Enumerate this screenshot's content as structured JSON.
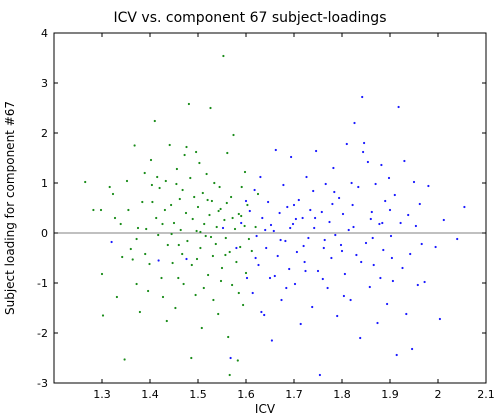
{
  "chart_data": {
    "type": "scatter",
    "title": "ICV vs. component 67 subject-loadings",
    "xlabel": "ICV",
    "ylabel": "Subject loading for component #67",
    "xlim": [
      1.2,
      2.1
    ],
    "ylim": [
      -3,
      4
    ],
    "xticks": [
      "1.3",
      "1.4",
      "1.5",
      "1.6",
      "1.7",
      "1.8",
      "1.9",
      "2",
      "2.1"
    ],
    "yticks": [
      "-3",
      "-2",
      "-1",
      "0",
      "1",
      "2",
      "3",
      "4"
    ],
    "grid": false,
    "reference_line_y": 0,
    "colors": {
      "green": "#1a8c1a",
      "blue": "#1a1aff",
      "axis": "#000000",
      "zero_line": "#808080"
    },
    "series": [
      {
        "color": "green",
        "points": [
          [
            1.265,
            1.02
          ],
          [
            1.282,
            0.46
          ],
          [
            1.298,
            0.46
          ],
          [
            1.3,
            -0.82
          ],
          [
            1.302,
            -1.65
          ],
          [
            1.316,
            0.92
          ],
          [
            1.323,
            0.78
          ],
          [
            1.327,
            0.3
          ],
          [
            1.331,
            -1.28
          ],
          [
            1.339,
            0.18
          ],
          [
            1.347,
            -2.53
          ],
          [
            1.352,
            1.04
          ],
          [
            1.355,
            0.46
          ],
          [
            1.36,
            -0.32
          ],
          [
            1.364,
            -0.53
          ],
          [
            1.368,
            1.75
          ],
          [
            1.372,
            -0.12
          ],
          [
            1.375,
            0.1
          ],
          [
            1.379,
            -1.58
          ],
          [
            1.384,
            0.62
          ],
          [
            1.389,
            1.2
          ],
          [
            1.392,
            0.08
          ],
          [
            1.396,
            -1.16
          ],
          [
            1.399,
            -0.62
          ],
          [
            1.402,
            1.46
          ],
          [
            1.405,
            0.62
          ],
          [
            1.41,
            2.24
          ],
          [
            1.413,
            0.3
          ],
          [
            1.417,
            -0.04
          ],
          [
            1.42,
            0.9
          ],
          [
            1.424,
            -0.9
          ],
          [
            1.427,
            -1.28
          ],
          [
            1.431,
            0.46
          ],
          [
            1.433,
            1.04
          ],
          [
            1.437,
            -0.24
          ],
          [
            1.441,
            1.76
          ],
          [
            1.444,
            0.56
          ],
          [
            1.447,
            -0.6
          ],
          [
            1.45,
            0.2
          ],
          [
            1.453,
            -1.5
          ],
          [
            1.456,
            1.28
          ],
          [
            1.459,
            -0.9
          ],
          [
            1.462,
            0.68
          ],
          [
            1.464,
            0.06
          ],
          [
            1.467,
            -0.42
          ],
          [
            1.47,
            -1.02
          ],
          [
            1.472,
            1.56
          ],
          [
            1.475,
            0.4
          ],
          [
            1.478,
            -0.16
          ],
          [
            1.481,
            2.58
          ],
          [
            1.484,
            1.1
          ],
          [
            1.487,
            -0.64
          ],
          [
            1.489,
            0.28
          ],
          [
            1.492,
            0.72
          ],
          [
            1.495,
            -1.24
          ],
          [
            1.497,
            0.04
          ],
          [
            1.5,
            0.52
          ],
          [
            1.503,
            1.4
          ],
          [
            1.505,
            -0.3
          ],
          [
            1.508,
            -1.9
          ],
          [
            1.51,
            0.8
          ],
          [
            1.513,
            0.18
          ],
          [
            1.516,
            -0.06
          ],
          [
            1.518,
            1.18
          ],
          [
            1.521,
            -0.84
          ],
          [
            1.524,
            0.36
          ],
          [
            1.526,
            2.5
          ],
          [
            1.529,
            0.64
          ],
          [
            1.531,
            -0.46
          ],
          [
            1.534,
            1.0
          ],
          [
            1.537,
            -0.22
          ],
          [
            1.539,
            0.12
          ],
          [
            1.542,
            -1.62
          ],
          [
            1.545,
            0.92
          ],
          [
            1.547,
            0.48
          ],
          [
            1.55,
            -0.7
          ],
          [
            1.553,
            3.54
          ],
          [
            1.555,
            0.26
          ],
          [
            1.558,
            -0.1
          ],
          [
            1.561,
            1.6
          ],
          [
            1.563,
            -2.08
          ],
          [
            1.566,
            -0.38
          ],
          [
            1.569,
            0.72
          ],
          [
            1.571,
            -1.04
          ],
          [
            1.574,
            1.96
          ],
          [
            1.577,
            0.08
          ],
          [
            1.58,
            -0.58
          ],
          [
            1.583,
            -2.55
          ],
          [
            1.585,
            0.38
          ],
          [
            1.588,
            -0.28
          ],
          [
            1.591,
            0.92
          ],
          [
            1.594,
            -1.44
          ],
          [
            1.597,
            0.14
          ],
          [
            1.6,
            -0.8
          ],
          [
            1.603,
            0.56
          ],
          [
            1.606,
            -0.12
          ],
          [
            1.39,
            -0.42
          ],
          [
            1.415,
            1.12
          ],
          [
            1.445,
            -0.02
          ],
          [
            1.468,
            0.86
          ],
          [
            1.498,
            -0.52
          ],
          [
            1.52,
            0.66
          ],
          [
            1.548,
            -0.96
          ],
          [
            1.572,
            0.3
          ],
          [
            1.598,
            1.22
          ],
          [
            1.435,
            -1.76
          ],
          [
            1.486,
            -2.5
          ],
          [
            1.532,
            -1.34
          ],
          [
            1.566,
            -2.84
          ],
          [
            1.455,
            0.98
          ],
          [
            1.505,
            0.02
          ],
          [
            1.557,
            -0.44
          ],
          [
            1.342,
            -0.48
          ],
          [
            1.372,
            -1.02
          ],
          [
            1.426,
            0.18
          ],
          [
            1.476,
            1.72
          ],
          [
            1.512,
            -1.1
          ],
          [
            1.543,
            0.44
          ],
          [
            1.59,
            0.34
          ],
          [
            1.62,
            0.12
          ],
          [
            1.612,
            -0.36
          ],
          [
            1.625,
            0.78
          ],
          [
            1.404,
            0.96
          ],
          [
            1.46,
            -0.24
          ],
          [
            1.496,
            1.62
          ],
          [
            1.527,
            -0.08
          ],
          [
            1.56,
            0.6
          ],
          [
            1.585,
            -1.2
          ]
        ]
      },
      {
        "color": "blue",
        "points": [
          [
            1.32,
            -0.18
          ],
          [
            1.418,
            -0.55
          ],
          [
            1.476,
            -0.52
          ],
          [
            1.552,
            0.1
          ],
          [
            1.568,
            -2.5
          ],
          [
            1.58,
            -0.3
          ],
          [
            1.59,
            0.2
          ],
          [
            1.602,
            -0.9
          ],
          [
            1.608,
            0.44
          ],
          [
            1.614,
            -1.2
          ],
          [
            1.618,
            0.86
          ],
          [
            1.622,
            -0.06
          ],
          [
            1.626,
            -0.64
          ],
          [
            1.63,
            1.12
          ],
          [
            1.634,
            0.3
          ],
          [
            1.638,
            -1.64
          ],
          [
            1.642,
            -0.3
          ],
          [
            1.646,
            0.62
          ],
          [
            1.65,
            -0.9
          ],
          [
            1.654,
            -2.15
          ],
          [
            1.658,
            0.04
          ],
          [
            1.662,
            1.66
          ],
          [
            1.666,
            -0.46
          ],
          [
            1.67,
            0.4
          ],
          [
            1.674,
            -1.34
          ],
          [
            1.678,
            0.96
          ],
          [
            1.682,
            -0.16
          ],
          [
            1.686,
            0.52
          ],
          [
            1.69,
            -0.72
          ],
          [
            1.694,
            1.52
          ],
          [
            1.698,
            0.18
          ],
          [
            1.702,
            -1.02
          ],
          [
            1.706,
            -0.38
          ],
          [
            1.71,
            0.66
          ],
          [
            1.714,
            -1.82
          ],
          [
            1.718,
            0.3
          ],
          [
            1.722,
            -0.58
          ],
          [
            1.726,
            1.12
          ],
          [
            1.73,
            -0.1
          ],
          [
            1.734,
            0.46
          ],
          [
            1.738,
            -1.48
          ],
          [
            1.742,
            0.1
          ],
          [
            1.746,
            1.64
          ],
          [
            1.75,
            -0.76
          ],
          [
            1.754,
            -2.84
          ],
          [
            1.758,
            0.42
          ],
          [
            1.762,
            -0.3
          ],
          [
            1.766,
            0.98
          ],
          [
            1.77,
            -1.1
          ],
          [
            1.774,
            0.22
          ],
          [
            1.778,
            -0.5
          ],
          [
            1.782,
            1.3
          ],
          [
            1.786,
            -0.04
          ],
          [
            1.79,
            -1.66
          ],
          [
            1.794,
            0.7
          ],
          [
            1.798,
            -0.24
          ],
          [
            1.802,
            0.38
          ],
          [
            1.806,
            -0.82
          ],
          [
            1.81,
            1.78
          ],
          [
            1.814,
            0.06
          ],
          [
            1.818,
            -1.34
          ],
          [
            1.822,
            0.56
          ],
          [
            1.826,
            2.2
          ],
          [
            1.83,
            -0.44
          ],
          [
            1.834,
            0.92
          ],
          [
            1.838,
            -2.1
          ],
          [
            1.842,
            2.72
          ],
          [
            1.846,
            1.8
          ],
          [
            1.85,
            -0.2
          ],
          [
            1.854,
            1.42
          ],
          [
            1.858,
            -1.08
          ],
          [
            1.862,
            0.42
          ],
          [
            1.866,
            -0.64
          ],
          [
            1.87,
            0.98
          ],
          [
            1.874,
            -1.8
          ],
          [
            1.878,
            0.18
          ],
          [
            1.882,
            1.36
          ],
          [
            1.886,
            -0.34
          ],
          [
            1.89,
            0.64
          ],
          [
            1.894,
            -1.42
          ],
          [
            1.898,
            1.1
          ],
          [
            1.902,
            -0.06
          ],
          [
            1.906,
            -0.96
          ],
          [
            1.91,
            0.76
          ],
          [
            1.914,
            -2.44
          ],
          [
            1.918,
            2.52
          ],
          [
            1.922,
            0.2
          ],
          [
            1.926,
            -0.7
          ],
          [
            1.93,
            1.44
          ],
          [
            1.934,
            -1.62
          ],
          [
            1.938,
            0.36
          ],
          [
            1.942,
            -0.42
          ],
          [
            1.946,
            -2.32
          ],
          [
            1.95,
            1.02
          ],
          [
            1.954,
            0.14
          ],
          [
            1.958,
            -1.04
          ],
          [
            1.962,
            0.58
          ],
          [
            1.966,
            -0.22
          ],
          [
            1.972,
            -0.98
          ],
          [
            1.98,
            0.94
          ],
          [
            1.995,
            -0.28
          ],
          [
            2.004,
            -1.72
          ],
          [
            2.012,
            0.26
          ],
          [
            2.04,
            -0.12
          ],
          [
            2.055,
            0.52
          ],
          [
            1.7,
            0.56
          ],
          [
            1.72,
            -0.26
          ],
          [
            1.74,
            0.84
          ],
          [
            1.76,
            -0.92
          ],
          [
            1.78,
            0.58
          ],
          [
            1.8,
            -0.36
          ],
          [
            1.82,
            1.0
          ],
          [
            1.84,
            -0.58
          ],
          [
            1.86,
            0.28
          ],
          [
            1.88,
            -0.9
          ],
          [
            1.9,
            0.46
          ],
          [
            1.684,
            -1.1
          ],
          [
            1.704,
            0.28
          ],
          [
            1.724,
            -0.76
          ],
          [
            1.744,
            0.3
          ],
          [
            1.764,
            -0.14
          ],
          [
            1.784,
            0.82
          ],
          [
            1.804,
            -1.26
          ],
          [
            1.824,
            0.12
          ],
          [
            1.844,
            1.62
          ],
          [
            1.864,
            -0.1
          ],
          [
            1.884,
            0.2
          ],
          [
            1.904,
            -0.5
          ],
          [
            1.66,
            -0.86
          ],
          [
            1.64,
            0.06
          ],
          [
            1.62,
            -0.5
          ],
          [
            1.6,
            0.64
          ],
          [
            1.632,
            -1.58
          ],
          [
            1.652,
            0.16
          ],
          [
            1.672,
            -0.14
          ],
          [
            1.692,
            0.1
          ]
        ]
      }
    ]
  }
}
